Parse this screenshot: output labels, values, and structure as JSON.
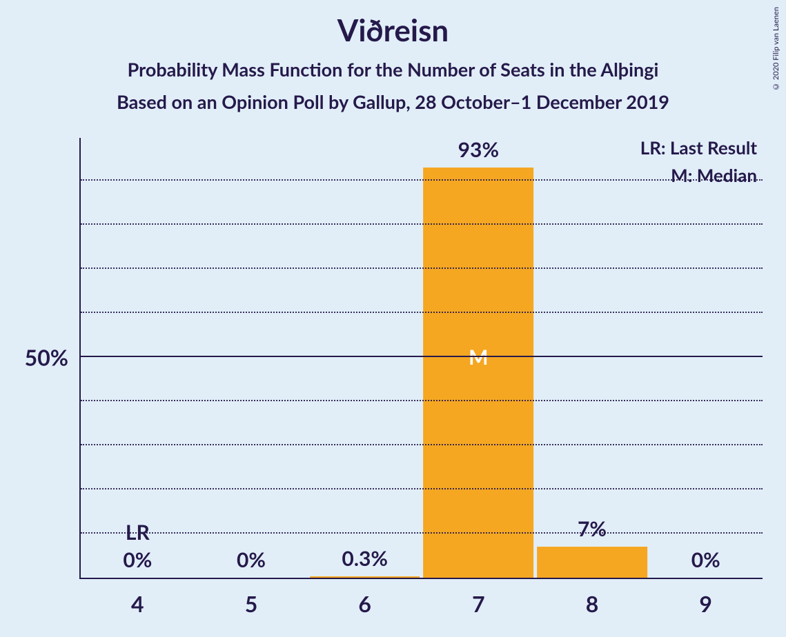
{
  "title": "Viðreisn",
  "subtitle1": "Probability Mass Function for the Number of Seats in the Alþingi",
  "subtitle2": "Based on an Opinion Poll by Gallup, 28 October–1 December 2019",
  "copyright": "© 2020 Filip van Laenen",
  "chart": {
    "type": "bar",
    "background_color": "#e1eef8",
    "text_color": "#25194a",
    "bar_color": "#f5a722",
    "median_label_color": "#ffffff",
    "ymax_pct": 100,
    "ytick_major": 50,
    "ytick_minor_step": 10,
    "ytick_label": "50%",
    "bar_width_ratio": 0.97,
    "categories": [
      "4",
      "5",
      "6",
      "7",
      "8",
      "9"
    ],
    "values_pct": [
      0,
      0,
      0.3,
      93,
      7,
      0
    ],
    "value_labels": [
      "0%",
      "0%",
      "0.3%",
      "93%",
      "7%",
      "0%"
    ],
    "markers": {
      "lr_index": 0,
      "lr_text": "LR",
      "median_index": 3,
      "median_text": "M"
    },
    "legend": {
      "lr": "LR: Last Result",
      "median": "M: Median"
    }
  }
}
